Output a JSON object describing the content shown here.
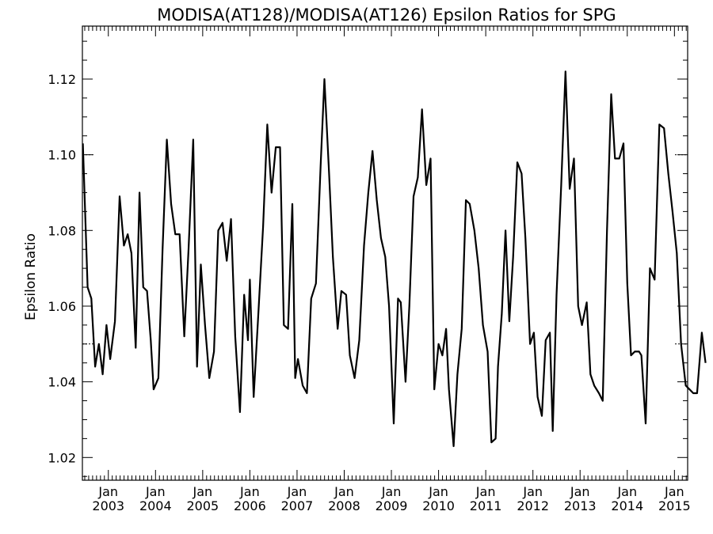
{
  "chart_data": {
    "type": "line",
    "title": "MODISA(AT128)/MODISA(AT126)  Epsilon Ratios for SPG",
    "ylabel": "Epsilon Ratio",
    "xlabel": "",
    "xlim": [
      2002.45,
      2015.28
    ],
    "ylim": [
      1.014,
      1.134
    ],
    "y_ticks": [
      1.02,
      1.04,
      1.06,
      1.08,
      1.1,
      1.12
    ],
    "y_tick_labels": [
      "1.02",
      "1.04",
      "1.06",
      "1.08",
      "1.10",
      "1.12"
    ],
    "x_ticks": [
      2003,
      2004,
      2005,
      2006,
      2007,
      2008,
      2009,
      2010,
      2011,
      2012,
      2013,
      2014,
      2015
    ],
    "x_tick_month": "Jan",
    "x_tick_years": [
      "2003",
      "2004",
      "2005",
      "2006",
      "2007",
      "2008",
      "2009",
      "2010",
      "2011",
      "2012",
      "2013",
      "2014",
      "2015"
    ],
    "reference_lines": [
      1.05,
      1.1
    ],
    "grid": false,
    "series": [
      {
        "values": [
          [
            2002.46,
            1.103
          ],
          [
            2002.56,
            1.065
          ],
          [
            2002.64,
            1.062
          ],
          [
            2002.72,
            1.044
          ],
          [
            2002.8,
            1.05
          ],
          [
            2002.88,
            1.042
          ],
          [
            2002.96,
            1.055
          ],
          [
            2003.04,
            1.046
          ],
          [
            2003.14,
            1.056
          ],
          [
            2003.24,
            1.089
          ],
          [
            2003.33,
            1.076
          ],
          [
            2003.41,
            1.079
          ],
          [
            2003.49,
            1.074
          ],
          [
            2003.58,
            1.049
          ],
          [
            2003.66,
            1.09
          ],
          [
            2003.74,
            1.065
          ],
          [
            2003.82,
            1.064
          ],
          [
            2003.9,
            1.051
          ],
          [
            2003.96,
            1.038
          ],
          [
            2004.06,
            1.041
          ],
          [
            2004.15,
            1.075
          ],
          [
            2004.24,
            1.104
          ],
          [
            2004.33,
            1.087
          ],
          [
            2004.42,
            1.079
          ],
          [
            2004.51,
            1.079
          ],
          [
            2004.61,
            1.052
          ],
          [
            2004.7,
            1.075
          ],
          [
            2004.8,
            1.104
          ],
          [
            2004.88,
            1.044
          ],
          [
            2004.96,
            1.071
          ],
          [
            2005.05,
            1.055
          ],
          [
            2005.14,
            1.041
          ],
          [
            2005.24,
            1.048
          ],
          [
            2005.33,
            1.08
          ],
          [
            2005.42,
            1.082
          ],
          [
            2005.51,
            1.072
          ],
          [
            2005.6,
            1.083
          ],
          [
            2005.69,
            1.052
          ],
          [
            2005.79,
            1.032
          ],
          [
            2005.88,
            1.063
          ],
          [
            2005.96,
            1.051
          ],
          [
            2006.0,
            1.067
          ],
          [
            2006.08,
            1.036
          ],
          [
            2006.18,
            1.058
          ],
          [
            2006.28,
            1.081
          ],
          [
            2006.37,
            1.108
          ],
          [
            2006.46,
            1.09
          ],
          [
            2006.55,
            1.102
          ],
          [
            2006.64,
            1.102
          ],
          [
            2006.72,
            1.055
          ],
          [
            2006.81,
            1.054
          ],
          [
            2006.9,
            1.087
          ],
          [
            2006.96,
            1.041
          ],
          [
            2007.02,
            1.046
          ],
          [
            2007.12,
            1.039
          ],
          [
            2007.21,
            1.037
          ],
          [
            2007.3,
            1.062
          ],
          [
            2007.4,
            1.066
          ],
          [
            2007.5,
            1.097
          ],
          [
            2007.58,
            1.12
          ],
          [
            2007.68,
            1.095
          ],
          [
            2007.76,
            1.073
          ],
          [
            2007.86,
            1.054
          ],
          [
            2007.94,
            1.064
          ],
          [
            2008.04,
            1.063
          ],
          [
            2008.12,
            1.047
          ],
          [
            2008.22,
            1.041
          ],
          [
            2008.32,
            1.051
          ],
          [
            2008.42,
            1.076
          ],
          [
            2008.51,
            1.09
          ],
          [
            2008.6,
            1.101
          ],
          [
            2008.69,
            1.088
          ],
          [
            2008.78,
            1.078
          ],
          [
            2008.87,
            1.073
          ],
          [
            2008.95,
            1.06
          ],
          [
            2009.05,
            1.029
          ],
          [
            2009.14,
            1.062
          ],
          [
            2009.2,
            1.061
          ],
          [
            2009.3,
            1.04
          ],
          [
            2009.38,
            1.06
          ],
          [
            2009.47,
            1.089
          ],
          [
            2009.56,
            1.094
          ],
          [
            2009.65,
            1.112
          ],
          [
            2009.74,
            1.092
          ],
          [
            2009.83,
            1.099
          ],
          [
            2009.91,
            1.038
          ],
          [
            2010.0,
            1.05
          ],
          [
            2010.08,
            1.047
          ],
          [
            2010.16,
            1.054
          ],
          [
            2010.22,
            1.038
          ],
          [
            2010.32,
            1.023
          ],
          [
            2010.4,
            1.042
          ],
          [
            2010.49,
            1.054
          ],
          [
            2010.58,
            1.088
          ],
          [
            2010.66,
            1.087
          ],
          [
            2010.76,
            1.08
          ],
          [
            2010.85,
            1.07
          ],
          [
            2010.94,
            1.055
          ],
          [
            2011.04,
            1.048
          ],
          [
            2011.12,
            1.024
          ],
          [
            2011.21,
            1.025
          ],
          [
            2011.26,
            1.044
          ],
          [
            2011.34,
            1.058
          ],
          [
            2011.42,
            1.08
          ],
          [
            2011.5,
            1.056
          ],
          [
            2011.58,
            1.073
          ],
          [
            2011.67,
            1.098
          ],
          [
            2011.76,
            1.095
          ],
          [
            2011.84,
            1.078
          ],
          [
            2011.94,
            1.05
          ],
          [
            2012.02,
            1.053
          ],
          [
            2012.1,
            1.036
          ],
          [
            2012.19,
            1.031
          ],
          [
            2012.27,
            1.051
          ],
          [
            2012.36,
            1.053
          ],
          [
            2012.42,
            1.027
          ],
          [
            2012.5,
            1.063
          ],
          [
            2012.6,
            1.092
          ],
          [
            2012.69,
            1.122
          ],
          [
            2012.78,
            1.091
          ],
          [
            2012.87,
            1.099
          ],
          [
            2012.96,
            1.06
          ],
          [
            2013.04,
            1.055
          ],
          [
            2013.14,
            1.061
          ],
          [
            2013.22,
            1.042
          ],
          [
            2013.3,
            1.039
          ],
          [
            2013.4,
            1.037
          ],
          [
            2013.48,
            1.035
          ],
          [
            2013.57,
            1.08
          ],
          [
            2013.66,
            1.116
          ],
          [
            2013.74,
            1.099
          ],
          [
            2013.83,
            1.099
          ],
          [
            2013.92,
            1.103
          ],
          [
            2014.0,
            1.066
          ],
          [
            2014.08,
            1.047
          ],
          [
            2014.16,
            1.048
          ],
          [
            2014.25,
            1.048
          ],
          [
            2014.3,
            1.047
          ],
          [
            2014.39,
            1.029
          ],
          [
            2014.48,
            1.07
          ],
          [
            2014.58,
            1.067
          ],
          [
            2014.68,
            1.108
          ],
          [
            2014.78,
            1.107
          ],
          [
            2014.87,
            1.095
          ],
          [
            2014.96,
            1.085
          ],
          [
            2015.05,
            1.074
          ],
          [
            2015.14,
            1.05
          ],
          [
            2015.24,
            1.039
          ],
          [
            2015.32,
            1.038
          ],
          [
            2015.4,
            1.037
          ],
          [
            2015.48,
            1.037
          ],
          [
            2015.58,
            1.053
          ],
          [
            2015.66,
            1.045
          ]
        ]
      }
    ]
  }
}
